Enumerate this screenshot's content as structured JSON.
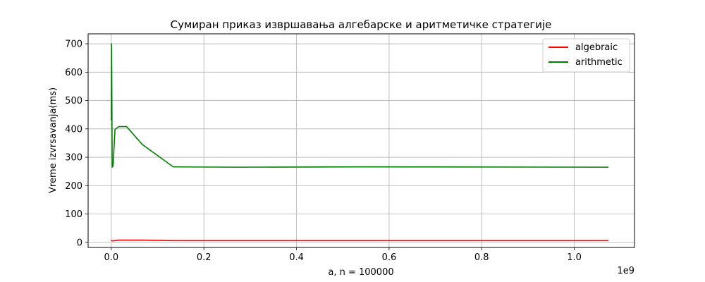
{
  "chart_data": {
    "type": "line",
    "title": "Сумиран приказ извршавања алгебарске и аритметичке стратегије",
    "xlabel": "a, n = 100000",
    "ylabel": "Vreme izvrsavanja(ms)",
    "x_offset_label": "1e9",
    "xlim": [
      -0.05,
      1.13
    ],
    "ylim": [
      -18,
      735
    ],
    "x_ticks": [
      0.0,
      0.2,
      0.4,
      0.6,
      0.8,
      1.0
    ],
    "x_tick_labels": [
      "0.0",
      "0.2",
      "0.4",
      "0.6",
      "0.8",
      "1.0"
    ],
    "y_ticks": [
      0,
      100,
      200,
      300,
      400,
      500,
      600,
      700
    ],
    "y_tick_labels": [
      "0",
      "100",
      "200",
      "300",
      "400",
      "500",
      "600",
      "700"
    ],
    "grid": true,
    "legend_position": "top-right",
    "x_scale_factor": 1000000000,
    "series": [
      {
        "name": "algebraic",
        "color": "#ff0000",
        "x": [
          0.0,
          0.0005,
          0.001,
          0.002,
          0.004,
          0.008,
          0.016,
          0.033,
          0.067,
          0.134,
          0.268,
          0.537,
          1.074
        ],
        "y": [
          8,
          7,
          6,
          5,
          5,
          6,
          8,
          8,
          8,
          6,
          6,
          6,
          6
        ]
      },
      {
        "name": "arithmetic",
        "color": "#008000",
        "x": [
          0.0,
          0.0005,
          0.001,
          0.002,
          0.004,
          0.008,
          0.016,
          0.033,
          0.067,
          0.134,
          0.268,
          0.537,
          1.074
        ],
        "y": [
          430,
          700,
          600,
          265,
          270,
          398,
          408,
          408,
          345,
          266,
          265,
          266,
          265
        ]
      }
    ]
  }
}
